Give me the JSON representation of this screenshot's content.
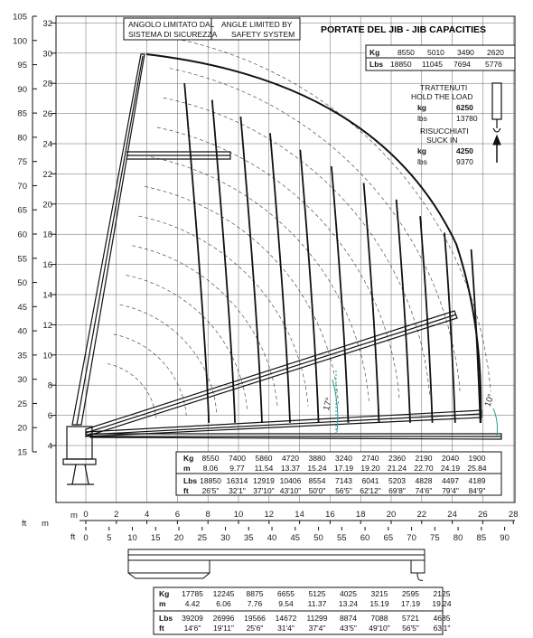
{
  "header": {
    "angle_it": [
      "ANGOLO LIMITATO DAL",
      "SISTEMA DI SICUREZZA"
    ],
    "angle_en": [
      "ANGLE LIMITED BY",
      "SAFETY SYSTEM"
    ],
    "title": "PORTATE DEL JIB  -  JIB CAPACITIES"
  },
  "jib_table": {
    "kg_label": "Kg",
    "kg": [
      "8550",
      "5010",
      "3490",
      "2620"
    ],
    "lbs_label": "Lbs",
    "lbs": [
      "18850",
      "11045",
      "7694",
      "5776"
    ]
  },
  "hold": {
    "it": "TRATTENUTI",
    "en": "HOLD THE LOAD",
    "kg_label": "kg",
    "kg": "6250",
    "lbs_label": "lbs",
    "lbs": "13780"
  },
  "suck": {
    "it": "RISUCCHIATI",
    "en": "SUCK IN",
    "kg_label": "kg",
    "kg": "4250",
    "lbs_label": "lbs",
    "lbs": "9370"
  },
  "axes": {
    "left_ft_label": "ft",
    "left_m_label": "m",
    "ft_ticks": [
      "105",
      "100",
      "95",
      "90",
      "85",
      "80",
      "75",
      "70",
      "65",
      "60",
      "55",
      "50",
      "45",
      "40",
      "35",
      "30",
      "25",
      "20",
      "15"
    ],
    "m_ticks": [
      "32",
      "30",
      "28",
      "26",
      "24",
      "22",
      "20",
      "18",
      "16",
      "14",
      "12",
      "10",
      "8",
      "6",
      "4"
    ],
    "bottom_m_label": "m",
    "bottom_ft_label": "ft",
    "x_m_ticks": [
      "0",
      "2",
      "4",
      "6",
      "8",
      "10",
      "12",
      "14",
      "16",
      "18",
      "20",
      "22",
      "24",
      "26",
      "28"
    ],
    "x_ft_ticks": [
      "0",
      "5",
      "10",
      "15",
      "20",
      "25",
      "30",
      "35",
      "40",
      "45",
      "50",
      "55",
      "60",
      "65",
      "70",
      "75",
      "80",
      "85",
      "90"
    ]
  },
  "jib_angles": {
    "a1": "17°",
    "a2": "10°"
  },
  "chart_table": {
    "labels": [
      "Kg",
      "m",
      "Lbs",
      "ft"
    ],
    "kg": [
      "8550",
      "7400",
      "5860",
      "4720",
      "3880",
      "3240",
      "2740",
      "2360",
      "2190",
      "2040",
      "1900"
    ],
    "m": [
      "8.06",
      "9.77",
      "11.54",
      "13.37",
      "15.24",
      "17.19",
      "19.20",
      "21.24",
      "22.70",
      "24.19",
      "25.84"
    ],
    "lbs": [
      "18850",
      "16314",
      "12919",
      "10406",
      "8554",
      "7143",
      "6041",
      "5203",
      "4828",
      "4497",
      "4189"
    ],
    "ft": [
      "26'5\"",
      "32'1\"",
      "37'10\"",
      "43'10\"",
      "50'0\"",
      "56'5\"",
      "62'12\"",
      "69'8\"",
      "74'6\"",
      "79'4\"",
      "84'9\""
    ]
  },
  "bottom_table": {
    "labels": [
      "Kg",
      "m",
      "Lbs",
      "ft"
    ],
    "kg": [
      "17785",
      "12245",
      "8875",
      "6655",
      "5125",
      "4025",
      "3215",
      "2595",
      "2125"
    ],
    "m": [
      "4.42",
      "6.06",
      "7.76",
      "9.54",
      "11.37",
      "13.24",
      "15.19",
      "17.19",
      "19.24"
    ],
    "lbs": [
      "39209",
      "26996",
      "19566",
      "14672",
      "11299",
      "8874",
      "7088",
      "5721",
      "4685"
    ],
    "ft": [
      "14'6\"",
      "19'11\"",
      "25'6\"",
      "31'4\"",
      "37'4\"",
      "43'5\"",
      "49'10\"",
      "56'5\"",
      "63'1\""
    ]
  },
  "colors": {
    "ink": "#111111",
    "grid": "#555555",
    "angle_marker": "#2a9d8f"
  }
}
